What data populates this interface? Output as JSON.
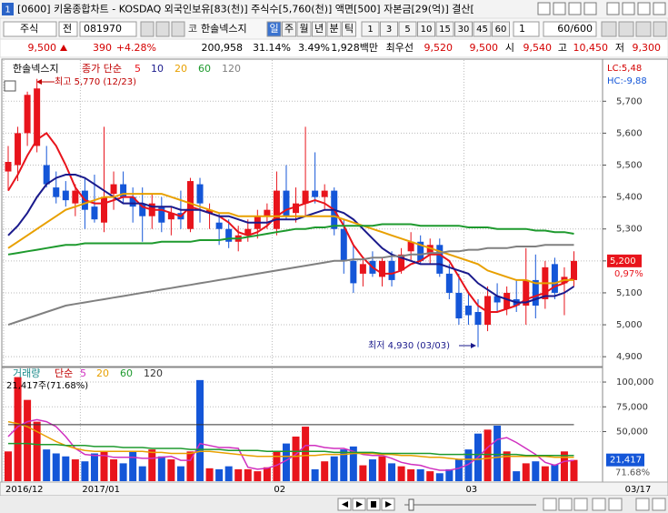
{
  "window_number": "1",
  "title": "[0600] 키움종합차트 - KOSDAQ 외국인보유[83(천)] 주식수[5,760(천)] 액면[500] 자본금[29(억)] 결산[",
  "toolbar": {
    "market": "주식",
    "exchange": "전",
    "code": "081970",
    "market_tag": "코",
    "stock_name": "한솔넥스지",
    "periods": [
      "일",
      "주",
      "월",
      "년",
      "분",
      "틱"
    ],
    "intervals": [
      "1",
      "3",
      "5",
      "10",
      "15",
      "30",
      "45",
      "60"
    ],
    "interval_input": "1",
    "count": "60/600"
  },
  "quote": [
    {
      "text": "9,500",
      "color": "#d40000"
    },
    {
      "text": "390",
      "color": "#d40000"
    },
    {
      "text": "+4.28%",
      "color": "#d40000"
    },
    {
      "text": "200,958",
      "color": "#000000"
    },
    {
      "text": "31.14%",
      "color": "#000000"
    },
    {
      "text": "3.49%",
      "color": "#000000"
    },
    {
      "text": "1,928백만",
      "color": "#000000"
    },
    {
      "text": "최우선",
      "color": "#000000"
    },
    {
      "text": "9,520",
      "color": "#d40000"
    },
    {
      "text": "9,500",
      "color": "#d40000"
    },
    {
      "text": "시",
      "color": "#000000"
    },
    {
      "text": "9,540",
      "color": "#d40000"
    },
    {
      "text": "고",
      "color": "#000000"
    },
    {
      "text": "10,450",
      "color": "#d40000"
    },
    {
      "text": "저",
      "color": "#000000"
    },
    {
      "text": "9,300",
      "color": "#d40000"
    }
  ],
  "cursor_date": "03/17",
  "chart_data": [
    {
      "type": "candlestick",
      "name": "한솔넥스지",
      "legend_label": "종가 단순",
      "up_color": "#e8141c",
      "down_color": "#1456d8",
      "open": [
        5480,
        5500,
        5600,
        5560,
        5500,
        5430,
        5420,
        5380,
        5420,
        5370,
        5320,
        5410,
        5440,
        5400,
        5380,
        5340,
        5370,
        5330,
        5350,
        5300,
        5440,
        5350,
        5320,
        5300,
        5260,
        5280,
        5300,
        5340,
        5300,
        5420,
        5350,
        5380,
        5420,
        5400,
        5420,
        5300,
        5200,
        5160,
        5200,
        5150,
        5200,
        5170,
        5230,
        5260,
        5220,
        5250,
        5160,
        5100,
        5060,
        5040,
        5000,
        5090,
        5050,
        5080,
        5060,
        5140,
        5080,
        5190,
        5130,
        5140
      ],
      "high": [
        5560,
        5620,
        5730,
        5770,
        5560,
        5480,
        5450,
        5440,
        5460,
        5470,
        5620,
        5480,
        5480,
        5430,
        5430,
        5410,
        5400,
        5370,
        5420,
        5460,
        5460,
        5380,
        5350,
        5330,
        5310,
        5330,
        5360,
        5380,
        5480,
        5500,
        5430,
        5620,
        5540,
        5440,
        5430,
        5330,
        5250,
        5210,
        5230,
        5210,
        5230,
        5240,
        5290,
        5280,
        5270,
        5270,
        5190,
        5160,
        5100,
        5080,
        5120,
        5130,
        5120,
        5140,
        5240,
        5220,
        5200,
        5210,
        5180,
        5230
      ],
      "low": [
        5420,
        5450,
        5560,
        5540,
        5430,
        5380,
        5370,
        5340,
        5300,
        5320,
        5290,
        5360,
        5380,
        5320,
        5260,
        5300,
        5290,
        5280,
        5300,
        5290,
        5320,
        5300,
        5250,
        5240,
        5230,
        5260,
        5270,
        5300,
        5280,
        5330,
        5320,
        5340,
        5380,
        5360,
        5280,
        5160,
        5100,
        5120,
        5150,
        5120,
        5120,
        5160,
        5200,
        5190,
        5190,
        5150,
        5080,
        5000,
        5000,
        4930,
        4980,
        5040,
        5030,
        5040,
        5000,
        5020,
        5050,
        5080,
        5030,
        5120
      ],
      "close": [
        5510,
        5600,
        5720,
        5740,
        5440,
        5400,
        5390,
        5420,
        5360,
        5330,
        5400,
        5440,
        5400,
        5370,
        5340,
        5380,
        5320,
        5350,
        5330,
        5450,
        5380,
        5360,
        5300,
        5260,
        5280,
        5300,
        5340,
        5360,
        5420,
        5340,
        5380,
        5420,
        5400,
        5420,
        5300,
        5200,
        5130,
        5190,
        5160,
        5200,
        5140,
        5220,
        5260,
        5200,
        5250,
        5160,
        5100,
        5020,
        5030,
        5000,
        5090,
        5070,
        5100,
        5060,
        5140,
        5060,
        5180,
        5100,
        5150,
        5200
      ],
      "ma_series": [
        {
          "name": "5",
          "color": "#e8141c",
          "values": [
            5420,
            5470,
            5530,
            5580,
            5600,
            5560,
            5500,
            5430,
            5390,
            5380,
            5380,
            5390,
            5400,
            5400,
            5370,
            5360,
            5360,
            5350,
            5340,
            5370,
            5360,
            5350,
            5340,
            5320,
            5290,
            5280,
            5290,
            5310,
            5340,
            5360,
            5370,
            5380,
            5390,
            5380,
            5360,
            5310,
            5250,
            5210,
            5180,
            5160,
            5160,
            5170,
            5190,
            5200,
            5220,
            5220,
            5200,
            5150,
            5100,
            5060,
            5040,
            5040,
            5050,
            5060,
            5080,
            5090,
            5100,
            5120,
            5130,
            5150
          ]
        },
        {
          "name": "10",
          "color": "#1a1a8c",
          "values": [
            5280,
            5310,
            5350,
            5400,
            5440,
            5460,
            5470,
            5470,
            5460,
            5440,
            5420,
            5400,
            5380,
            5380,
            5380,
            5370,
            5370,
            5370,
            5360,
            5360,
            5360,
            5350,
            5340,
            5340,
            5330,
            5320,
            5320,
            5320,
            5330,
            5330,
            5330,
            5340,
            5350,
            5360,
            5360,
            5350,
            5330,
            5300,
            5270,
            5240,
            5220,
            5210,
            5200,
            5190,
            5190,
            5190,
            5180,
            5170,
            5160,
            5130,
            5110,
            5090,
            5080,
            5070,
            5070,
            5080,
            5090,
            5090,
            5100,
            5120
          ]
        },
        {
          "name": "20",
          "color": "#e8a000",
          "values": [
            5240,
            5260,
            5280,
            5300,
            5320,
            5340,
            5360,
            5370,
            5380,
            5390,
            5400,
            5400,
            5410,
            5410,
            5410,
            5410,
            5410,
            5400,
            5390,
            5380,
            5370,
            5360,
            5350,
            5350,
            5340,
            5340,
            5340,
            5340,
            5340,
            5340,
            5340,
            5340,
            5340,
            5340,
            5340,
            5330,
            5320,
            5310,
            5300,
            5290,
            5280,
            5270,
            5260,
            5250,
            5240,
            5230,
            5220,
            5210,
            5200,
            5190,
            5170,
            5160,
            5150,
            5140,
            5140,
            5130,
            5130,
            5130,
            5140,
            5140
          ]
        },
        {
          "name": "60",
          "color": "#1e9a2e",
          "values": [
            5220,
            5225,
            5230,
            5235,
            5240,
            5245,
            5250,
            5250,
            5255,
            5255,
            5255,
            5255,
            5255,
            5255,
            5255,
            5255,
            5260,
            5260,
            5260,
            5260,
            5265,
            5265,
            5265,
            5270,
            5270,
            5275,
            5280,
            5285,
            5290,
            5295,
            5300,
            5300,
            5305,
            5305,
            5310,
            5310,
            5310,
            5310,
            5310,
            5315,
            5315,
            5315,
            5315,
            5310,
            5310,
            5310,
            5310,
            5310,
            5305,
            5305,
            5305,
            5300,
            5300,
            5300,
            5300,
            5295,
            5295,
            5290,
            5290,
            5285
          ]
        },
        {
          "name": "120",
          "color": "#808080",
          "values": [
            5000,
            5010,
            5020,
            5030,
            5040,
            5050,
            5060,
            5065,
            5070,
            5075,
            5080,
            5085,
            5090,
            5095,
            5100,
            5105,
            5110,
            5115,
            5120,
            5125,
            5130,
            5135,
            5140,
            5145,
            5150,
            5155,
            5160,
            5165,
            5170,
            5175,
            5180,
            5185,
            5190,
            5195,
            5200,
            5200,
            5205,
            5205,
            5210,
            5210,
            5215,
            5215,
            5220,
            5220,
            5225,
            5225,
            5230,
            5230,
            5235,
            5235,
            5240,
            5240,
            5240,
            5245,
            5245,
            5245,
            5250,
            5250,
            5250,
            5250
          ]
        }
      ],
      "ylim": [
        4872,
        5829
      ],
      "yticks": [
        {
          "value": 4900,
          "label": "4,900"
        },
        {
          "value": 5000,
          "label": "5,000"
        },
        {
          "value": 5100,
          "label": "5,100"
        },
        {
          "value": 5200,
          "label": "5,200"
        },
        {
          "value": 5300,
          "label": "5,300"
        },
        {
          "value": 5400,
          "label": "5,400"
        },
        {
          "value": 5500,
          "label": "5,500"
        },
        {
          "value": 5600,
          "label": "5,600"
        },
        {
          "value": 5700,
          "label": "5,700"
        }
      ],
      "grid": true,
      "annotations": [
        "최고 5,770 (12/23)",
        "최저 4,930 (03/03)"
      ],
      "side_labels": [
        "LC:5,48",
        "HC:-9,88"
      ],
      "price_box": "5,200",
      "change_label": "0,97%"
    },
    {
      "type": "bar",
      "title": "거래량",
      "legend_label": "단순",
      "categories": [
        "2016/12",
        null,
        null,
        null,
        null,
        null,
        null,
        null,
        "2017/01",
        null,
        null,
        null,
        null,
        null,
        null,
        null,
        null,
        null,
        null,
        null,
        null,
        null,
        null,
        null,
        null,
        null,
        null,
        null,
        "02",
        null,
        null,
        null,
        null,
        null,
        null,
        null,
        null,
        null,
        null,
        null,
        null,
        null,
        null,
        null,
        null,
        null,
        null,
        null,
        "03",
        null,
        null,
        null,
        null,
        null,
        null,
        null,
        null,
        null,
        null,
        null
      ],
      "values": [
        30000,
        105000,
        82000,
        60000,
        32000,
        28000,
        25000,
        22000,
        20000,
        28000,
        30000,
        22000,
        18000,
        30000,
        15000,
        32000,
        25000,
        22000,
        15000,
        30000,
        102000,
        13000,
        12000,
        15000,
        12000,
        12000,
        10000,
        14000,
        30000,
        38000,
        45000,
        55000,
        12000,
        20000,
        25000,
        32000,
        35000,
        16000,
        22000,
        25000,
        18000,
        15000,
        12000,
        12000,
        10000,
        8000,
        12000,
        22000,
        32000,
        48000,
        52000,
        56000,
        30000,
        10000,
        18000,
        20000,
        15000,
        17000,
        30000,
        21417
      ],
      "ma_series": [
        {
          "name": "5",
          "color": "#d030c0",
          "values": [
            45000,
            55000,
            60000,
            62000,
            60000,
            55000,
            45000,
            33000,
            27000,
            26000,
            26000,
            24000,
            24000,
            24000,
            23000,
            23000,
            24000,
            25000,
            21000,
            21000,
            38000,
            36000,
            34000,
            34000,
            33000,
            14000,
            12000,
            13000,
            16000,
            21000,
            27000,
            36000,
            36000,
            34000,
            33000,
            33000,
            30000,
            27000,
            26000,
            26000,
            23000,
            19000,
            17000,
            16000,
            13000,
            11000,
            11000,
            13000,
            17000,
            24000,
            34000,
            42000,
            44000,
            39000,
            33000,
            27000,
            19000,
            16000,
            20000,
            21000
          ]
        },
        {
          "name": "20",
          "color": "#e8a000",
          "values": [
            60000,
            58000,
            55000,
            50000,
            45000,
            40000,
            36000,
            33000,
            31000,
            30000,
            30000,
            30000,
            30000,
            30000,
            30000,
            29000,
            29000,
            28000,
            28000,
            28000,
            30000,
            30000,
            29000,
            28000,
            27000,
            26000,
            25000,
            25000,
            25000,
            25000,
            25000,
            26000,
            26000,
            27000,
            27000,
            27000,
            28000,
            28000,
            28000,
            27000,
            27000,
            26000,
            26000,
            25000,
            24000,
            24000,
            23000,
            22000,
            22000,
            22000,
            23000,
            24000,
            25000,
            25000,
            25000,
            25000,
            25000,
            24000,
            24000,
            24000
          ]
        },
        {
          "name": "60",
          "color": "#1e9a2e",
          "values": [
            38000,
            38000,
            38000,
            37000,
            37000,
            37000,
            36000,
            36000,
            36000,
            35000,
            35000,
            35000,
            34000,
            34000,
            34000,
            33000,
            33000,
            33000,
            33000,
            32000,
            32000,
            32000,
            32000,
            31000,
            31000,
            31000,
            31000,
            30000,
            30000,
            30000,
            30000,
            30000,
            30000,
            30000,
            29000,
            29000,
            29000,
            29000,
            29000,
            28000,
            28000,
            28000,
            28000,
            28000,
            28000,
            27000,
            27000,
            27000,
            27000,
            27000,
            27000,
            27000,
            27000,
            27000,
            26000,
            26000,
            26000,
            26000,
            26000,
            26000
          ]
        },
        {
          "name": "120",
          "color": "#333333",
          "values": [
            57000,
            57000,
            57000,
            57000,
            57000,
            57000,
            57000,
            57000,
            57000,
            57000,
            57000,
            57000,
            57000,
            57000,
            57000,
            57000,
            57000,
            57000,
            57000,
            57000,
            57000,
            57000,
            57000,
            57000,
            57000,
            57000,
            57000,
            57000,
            57000,
            57000,
            57000,
            57000,
            57000,
            57000,
            57000,
            57000,
            57000,
            57000,
            57000,
            57000,
            57000,
            57000,
            57000,
            57000,
            57000,
            57000,
            57000,
            57000,
            57000,
            57000,
            57000,
            57000,
            57000,
            57000,
            57000,
            57000,
            57000,
            57000,
            57000,
            57000
          ]
        }
      ],
      "ylim": [
        0,
        113800
      ],
      "yticks": [
        {
          "value": 50000,
          "label": "50,000"
        },
        {
          "value": 75000,
          "label": "75,000"
        },
        {
          "value": 100000,
          "label": "100,000"
        }
      ],
      "grid": true,
      "summary": "21,417주(71.68%)",
      "last_box": "21,417",
      "last_pct": "71.68%"
    }
  ]
}
